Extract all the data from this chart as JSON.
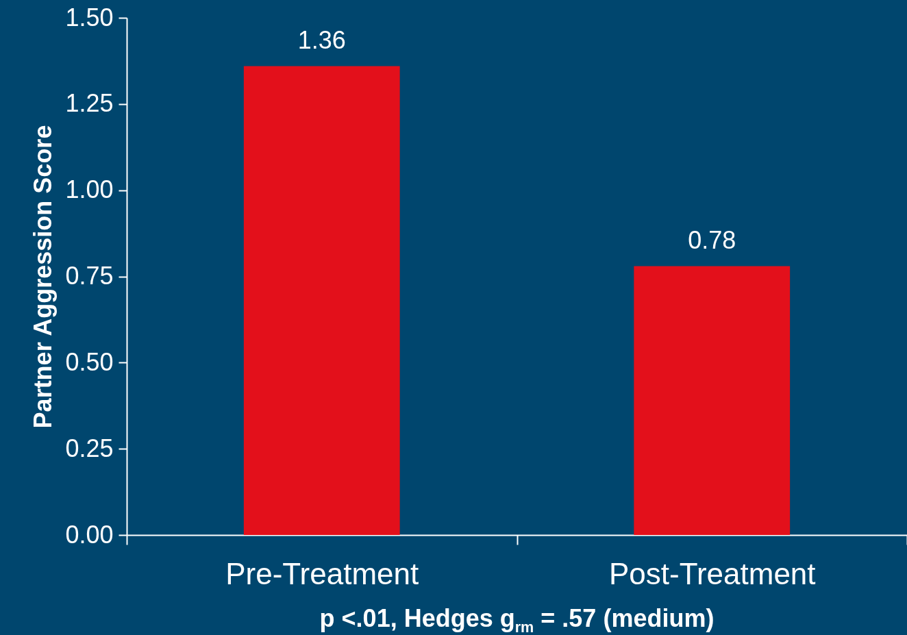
{
  "chart_data": {
    "type": "bar",
    "categories": [
      "Pre-Treatment",
      "Post-Treatment"
    ],
    "values": [
      1.36,
      0.78
    ],
    "color": "#e3101b",
    "ylabel": "Partner Aggression Score",
    "ylim": [
      0,
      1.5
    ],
    "yticks": [
      {
        "value": 0,
        "label": "0.00"
      },
      {
        "value": 0.25,
        "label": "0.25"
      },
      {
        "value": 0.5,
        "label": "0.50"
      },
      {
        "value": 0.75,
        "label": "0.75"
      },
      {
        "value": 1,
        "label": "1.00"
      },
      {
        "value": 1.25,
        "label": "1.25"
      },
      {
        "value": 1.5,
        "label": "1.50"
      }
    ],
    "data_labels": true,
    "grid": false,
    "legend": false,
    "annotations": [
      "p <.01, Hedges g$_{rm}$ = .57 (medium)"
    ]
  }
}
